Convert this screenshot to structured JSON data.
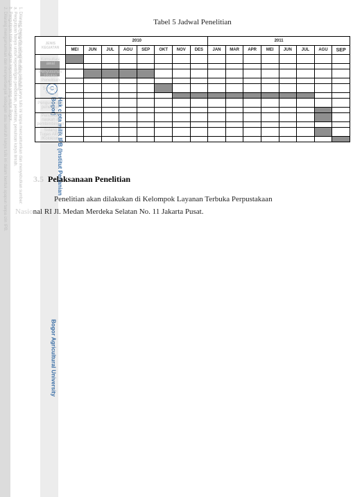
{
  "title": "Tabel 5 Jadwal Penelitian",
  "header": {
    "corner": "JENIS\nKEGIATAN",
    "group_2010": "2010",
    "group_2011": "2011",
    "months_2010": [
      "MEI",
      "JUN",
      "JUL",
      "AGU",
      "SEP",
      "OKT",
      "NOV",
      "DES"
    ],
    "months_2011": [
      "JAN",
      "MAR",
      "APR",
      "MEI",
      "JUN",
      "JUL",
      "AGU",
      "SEP"
    ]
  },
  "activities": [
    {
      "label": "Konsultasi\nawal",
      "sub": [
        [
          1,
          0,
          0,
          0,
          0,
          0,
          0,
          0,
          0,
          0,
          0,
          0,
          0,
          0,
          0,
          0
        ],
        [
          0,
          0,
          0,
          0,
          0,
          0,
          0,
          0,
          0,
          0,
          0,
          0,
          0,
          0,
          0,
          0
        ]
      ]
    },
    {
      "label": "Penyusunan\nUsulan\nPenelitian",
      "sub": [
        [
          0,
          1,
          1,
          1,
          1,
          0,
          0,
          0,
          0,
          0,
          0,
          0,
          0,
          0,
          0,
          0
        ],
        [
          0,
          0,
          0,
          0,
          0,
          0,
          0,
          0,
          0,
          0,
          0,
          0,
          0,
          0,
          0,
          0
        ]
      ]
    },
    {
      "label": "Seminar\nVol. 1",
      "sub": [
        [
          0,
          0,
          0,
          0,
          0,
          1,
          0,
          0,
          0,
          0,
          0,
          0,
          0,
          0,
          0,
          0
        ],
        [
          0,
          0,
          0,
          0,
          0,
          0,
          1,
          1,
          1,
          1,
          1,
          1,
          1,
          1,
          0,
          0
        ]
      ]
    },
    {
      "label": "Pengumpulan\npenelitian",
      "sub": [
        [
          0,
          0,
          0,
          0,
          0,
          0,
          0,
          0,
          0,
          0,
          0,
          0,
          0,
          0,
          0,
          0
        ],
        [
          0,
          0,
          0,
          0,
          0,
          0,
          0,
          0,
          0,
          0,
          0,
          0,
          0,
          0,
          1,
          0
        ]
      ]
    },
    {
      "label": "Penulisan\nnaskah &\npembimbingan",
      "sub": [
        [
          0,
          0,
          0,
          0,
          0,
          0,
          0,
          0,
          0,
          0,
          0,
          0,
          0,
          0,
          1,
          0
        ],
        [
          0,
          0,
          0,
          0,
          0,
          0,
          0,
          0,
          0,
          0,
          0,
          0,
          0,
          0,
          0,
          0
        ]
      ]
    },
    {
      "label": "Sidang\nTugas Akhir\n/Kolokium",
      "sub": [
        [
          0,
          0,
          0,
          0,
          0,
          0,
          0,
          0,
          0,
          0,
          0,
          0,
          0,
          0,
          1,
          0
        ],
        [
          0,
          0,
          0,
          0,
          0,
          0,
          0,
          0,
          0,
          0,
          0,
          0,
          0,
          0,
          0,
          1
        ]
      ]
    }
  ],
  "table_style": {
    "filled_color": "#8f8f8f",
    "border_color": "#000000",
    "header_font_size": 6,
    "cell_height_main": 12,
    "cell_height_sub": 7
  },
  "section": {
    "number": "3.5",
    "title": "Pelaksanaan Penelitian",
    "paragraph_leading_faded": "Penelitian akan dilakukan di Kelompok Layanan Terbuka Perpustakaan",
    "paragraph_line2_faded_prefix": "Nasio",
    "paragraph_line2_rest": "nal RI Jl. Medan Merdeka Selatan No. 11 Jakarta Pusat."
  },
  "watermarks": {
    "left_rules": "1. Dilarang mengutip sebagian atau seluruh karya tulis ini tanpa mencantumkan dan menyebutkan sumber:\n   a. Pengutipan hanya untuk kepentingan pendidikan, penelitian, penulisan karya ilmiah.\n   b. Pengutipan tidak merugikan kepentingan yang wajar Bogor.\n2. Dilarang mengumumkan dan memperbanyak sebagian atau seluruh karya tulis ini dalam bentuk apapun tanpa izin IPB.",
    "cipta1": "Hak Cipta Dilindungi Undang-Undang",
    "ipb": "Hak cipta milik IPB (Institut Pertanian Bogor)",
    "bau": "Bogor Agricultural University",
    "c_symbol": "C"
  }
}
